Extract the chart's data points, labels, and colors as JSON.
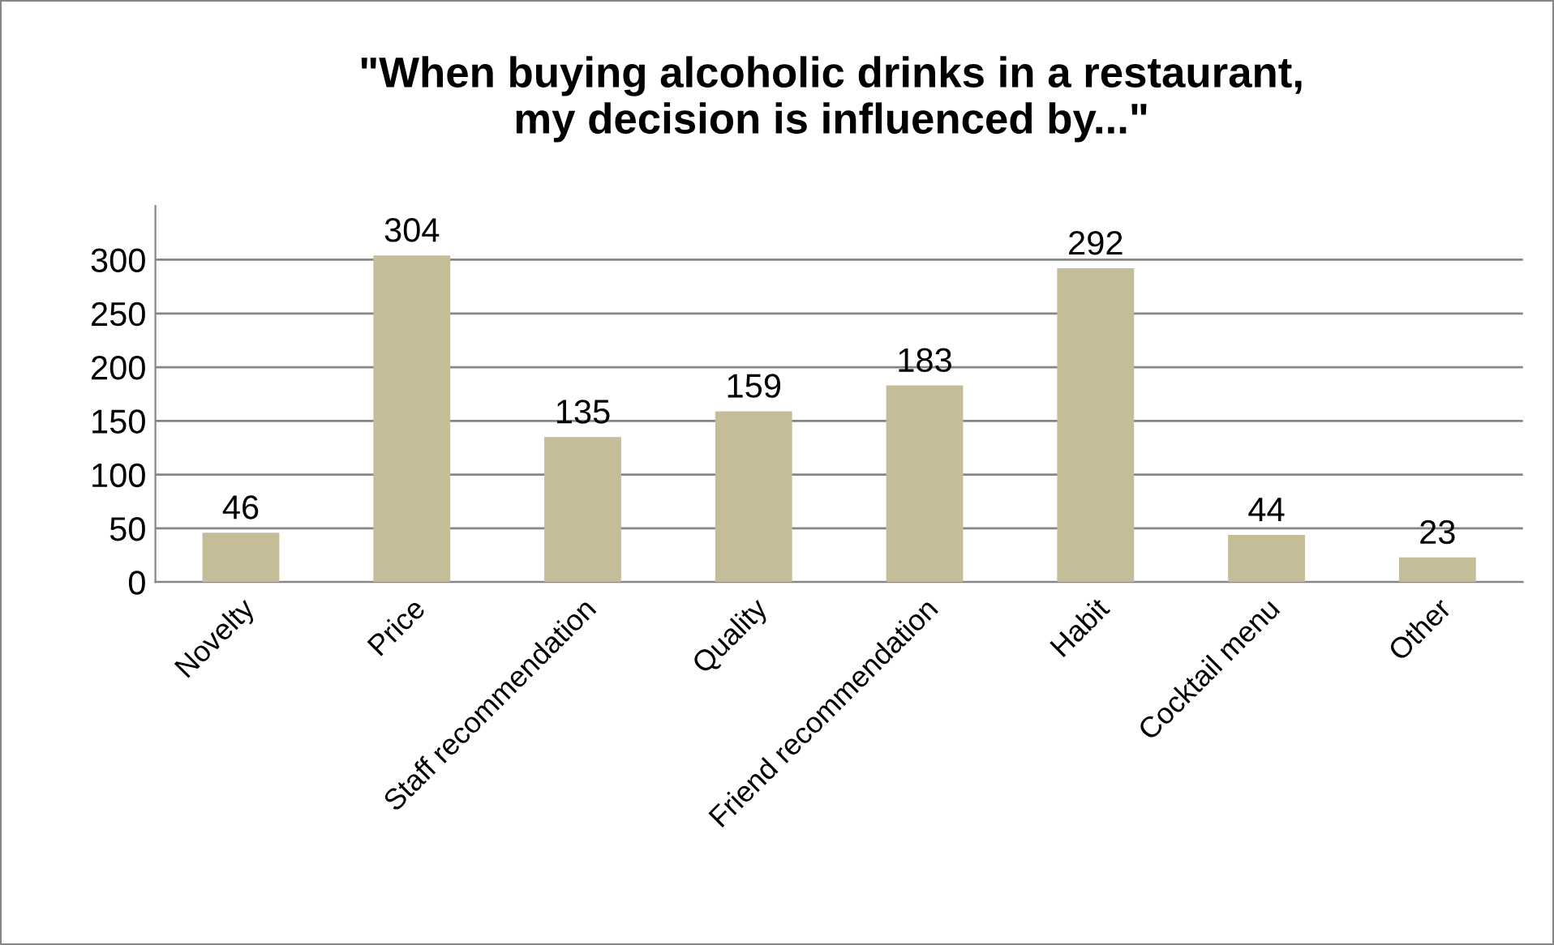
{
  "chart_data": {
    "type": "bar",
    "title": "\"When buying alcoholic drinks in a restaurant,\nmy decision is influenced by...\"",
    "categories": [
      "Novelty",
      "Price",
      "Staff recommendation",
      "Quality",
      "Friend recommendation",
      "Habit",
      "Cocktail menu",
      "Other"
    ],
    "values": [
      46,
      304,
      135,
      159,
      183,
      292,
      44,
      23
    ],
    "color": "#c4bd97",
    "ylim": [
      0,
      350
    ],
    "yticks": [
      0,
      50,
      100,
      150,
      200,
      250,
      300
    ],
    "grid": "y",
    "data_labels": true,
    "legend": false
  }
}
